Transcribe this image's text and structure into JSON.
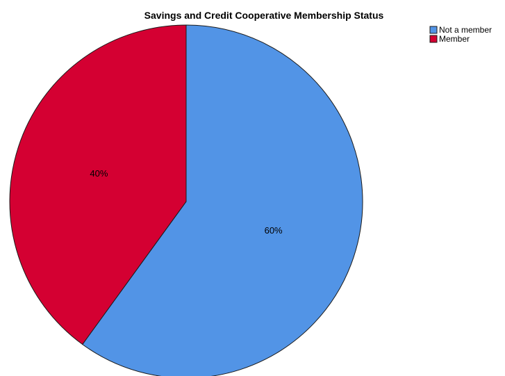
{
  "chart_data": {
    "type": "pie",
    "title": "Savings and Credit Cooperative Membership Status",
    "categories": [
      "Not a member",
      "Member"
    ],
    "values": [
      60,
      40
    ],
    "data_labels": [
      "60%",
      "40%"
    ],
    "colors": [
      "#5294e6",
      "#d40032"
    ],
    "edge_color": "#1a1a1a",
    "legend": {
      "position": "top-right",
      "entries": [
        "Not a member",
        "Member"
      ]
    }
  }
}
